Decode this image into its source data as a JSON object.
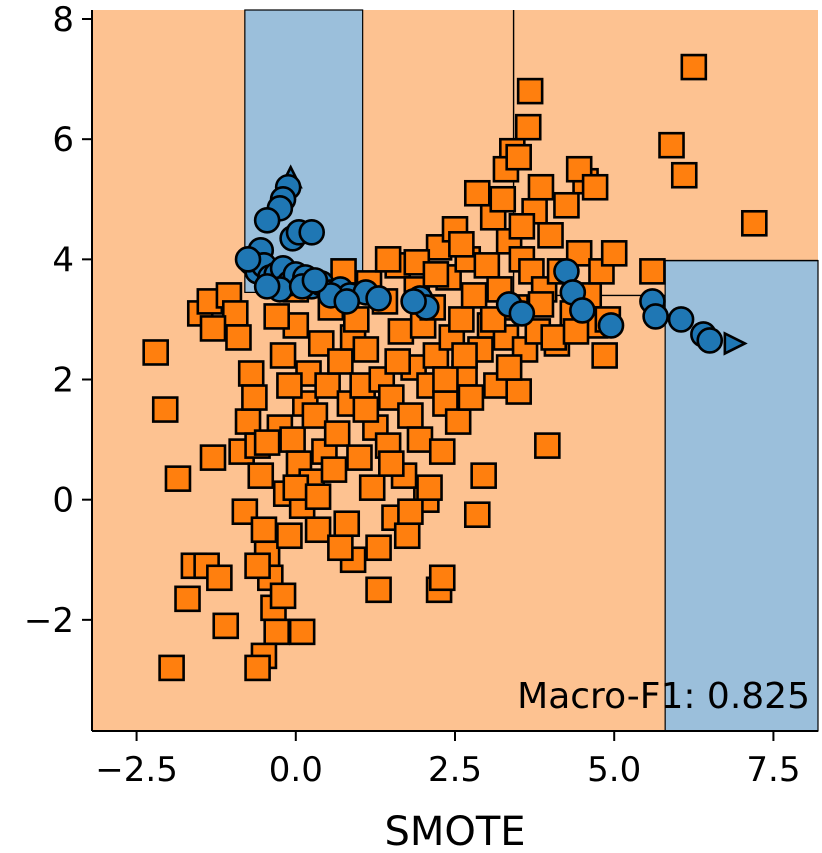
{
  "chart_data": {
    "type": "scatter",
    "title": "",
    "xlabel": "SMOTE",
    "ylabel": "",
    "xlim": [
      -3.2,
      8.2
    ],
    "ylim": [
      -3.85,
      8.15
    ],
    "xticks": [
      -2.5,
      0.0,
      2.5,
      5.0,
      7.5
    ],
    "xtick_labels": [
      "−2.5",
      "0.0",
      "2.5",
      "5.0",
      "7.5"
    ],
    "yticks": [
      -2,
      0,
      2,
      4,
      6,
      8
    ],
    "ytick_labels": [
      "−2",
      "0",
      "2",
      "4",
      "6",
      "8"
    ],
    "annotation": "Macro-F1: 0.825",
    "colors": {
      "majority_marker": "#ff7f0e",
      "minority_marker": "#1f77b4",
      "majority_region": "#fdc291",
      "minority_region": "#9bbfdb",
      "edge": "#000000"
    },
    "decision_regions": [
      {
        "class": "minority",
        "x": [
          -0.8,
          1.05
        ],
        "y": [
          3.45,
          8.15
        ]
      },
      {
        "class": "minority",
        "x": [
          5.8,
          8.2
        ],
        "y": [
          -3.85,
          3.98
        ]
      }
    ],
    "boundary_lines": [
      {
        "x": [
          3.42,
          3.42
        ],
        "y": [
          3.3,
          8.15
        ]
      },
      {
        "x": [
          3.42,
          5.8
        ],
        "y": [
          3.4,
          3.4
        ]
      },
      {
        "x": [
          5.8,
          8.2
        ],
        "y": [
          3.98,
          3.98
        ]
      }
    ],
    "series": [
      {
        "name": "majority",
        "marker": "square",
        "points": [
          [
            -2.2,
            2.45
          ],
          [
            -2.05,
            1.5
          ],
          [
            -1.85,
            0.35
          ],
          [
            -1.95,
            -2.8
          ],
          [
            -1.7,
            -1.65
          ],
          [
            -1.6,
            -1.1
          ],
          [
            -1.4,
            -1.1
          ],
          [
            -1.3,
            0.7
          ],
          [
            -1.2,
            -1.3
          ],
          [
            -1.1,
            -2.1
          ],
          [
            -1.5,
            3.1
          ],
          [
            -1.35,
            3.3
          ],
          [
            -1.05,
            3.4
          ],
          [
            -0.95,
            3.1
          ],
          [
            -0.9,
            2.7
          ],
          [
            -0.85,
            0.8
          ],
          [
            -0.8,
            -0.2
          ],
          [
            -0.75,
            1.3
          ],
          [
            -0.7,
            2.1
          ],
          [
            -0.65,
            1.7
          ],
          [
            -0.6,
            0.9
          ],
          [
            -0.55,
            0.4
          ],
          [
            -0.5,
            -0.5
          ],
          [
            -0.45,
            -0.9
          ],
          [
            -0.4,
            -1.3
          ],
          [
            -0.35,
            -1.8
          ],
          [
            -0.3,
            -2.2
          ],
          [
            -0.25,
            1.2
          ],
          [
            -0.2,
            2.4
          ],
          [
            -0.15,
            0.1
          ],
          [
            -0.1,
            -0.6
          ],
          [
            -0.05,
            1.0
          ],
          [
            0.0,
            2.9
          ],
          [
            0.05,
            0.6
          ],
          [
            0.1,
            -0.1
          ],
          [
            0.15,
            1.6
          ],
          [
            0.2,
            2.1
          ],
          [
            0.25,
            0.3
          ],
          [
            0.3,
            1.4
          ],
          [
            0.35,
            -0.5
          ],
          [
            0.4,
            2.6
          ],
          [
            0.45,
            0.8
          ],
          [
            0.5,
            1.9
          ],
          [
            0.55,
            3.2
          ],
          [
            0.6,
            0.5
          ],
          [
            0.65,
            1.1
          ],
          [
            0.7,
            2.3
          ],
          [
            0.75,
            3.8
          ],
          [
            0.8,
            -0.4
          ],
          [
            0.85,
            1.6
          ],
          [
            0.9,
            2.7
          ],
          [
            0.95,
            3.0
          ],
          [
            1.0,
            0.7
          ],
          [
            1.05,
            1.9
          ],
          [
            1.1,
            2.5
          ],
          [
            1.15,
            3.6
          ],
          [
            1.2,
            0.2
          ],
          [
            1.25,
            1.2
          ],
          [
            1.3,
            -0.8
          ],
          [
            1.35,
            2.0
          ],
          [
            1.4,
            3.3
          ],
          [
            1.45,
            0.9
          ],
          [
            1.5,
            1.7
          ],
          [
            1.55,
            -0.3
          ],
          [
            1.6,
            3.9
          ],
          [
            1.65,
            2.8
          ],
          [
            1.7,
            0.4
          ],
          [
            1.75,
            -0.6
          ],
          [
            1.8,
            1.4
          ],
          [
            1.85,
            2.2
          ],
          [
            1.9,
            3.5
          ],
          [
            1.95,
            1.0
          ],
          [
            2.0,
            2.9
          ],
          [
            2.05,
            0.0
          ],
          [
            2.1,
            1.9
          ],
          [
            2.15,
            3.2
          ],
          [
            2.2,
            2.4
          ],
          [
            2.25,
            4.2
          ],
          [
            2.3,
            0.8
          ],
          [
            2.35,
            1.6
          ],
          [
            2.4,
            3.7
          ],
          [
            2.45,
            2.7
          ],
          [
            2.5,
            4.5
          ],
          [
            2.55,
            1.3
          ],
          [
            2.6,
            3.0
          ],
          [
            2.65,
            2.1
          ],
          [
            2.7,
            4.0
          ],
          [
            2.75,
            1.7
          ],
          [
            2.8,
            3.4
          ],
          [
            2.85,
            5.1
          ],
          [
            2.9,
            2.5
          ],
          [
            2.95,
            0.4
          ],
          [
            3.0,
            3.9
          ],
          [
            3.05,
            2.9
          ],
          [
            3.1,
            4.7
          ],
          [
            3.15,
            1.9
          ],
          [
            3.2,
            3.5
          ],
          [
            3.25,
            5.0
          ],
          [
            3.3,
            2.7
          ],
          [
            3.35,
            4.3
          ],
          [
            3.4,
            5.8
          ],
          [
            3.45,
            3.2
          ],
          [
            3.5,
            1.8
          ],
          [
            3.55,
            4.0
          ],
          [
            3.6,
            2.5
          ],
          [
            3.65,
            6.2
          ],
          [
            3.7,
            3.8
          ],
          [
            3.75,
            4.8
          ],
          [
            3.8,
            2.8
          ],
          [
            3.85,
            5.2
          ],
          [
            3.9,
            3.5
          ],
          [
            3.95,
            0.9
          ],
          [
            4.0,
            4.4
          ],
          [
            4.1,
            2.6
          ],
          [
            4.15,
            3.8
          ],
          [
            4.25,
            4.9
          ],
          [
            4.35,
            3.1
          ],
          [
            4.45,
            4.1
          ],
          [
            4.55,
            5.3
          ],
          [
            4.6,
            3.4
          ],
          [
            4.7,
            2.9
          ],
          [
            4.8,
            3.8
          ],
          [
            4.9,
            3.0
          ],
          [
            5.0,
            4.1
          ],
          [
            4.85,
            2.4
          ],
          [
            3.68,
            6.8
          ],
          [
            4.45,
            5.5
          ],
          [
            4.7,
            5.2
          ],
          [
            5.9,
            5.9
          ],
          [
            6.1,
            5.4
          ],
          [
            6.25,
            7.2
          ],
          [
            7.2,
            4.6
          ],
          [
            5.6,
            3.8
          ],
          [
            3.3,
            5.5
          ],
          [
            3.5,
            5.7
          ],
          [
            -0.6,
            -1.1
          ],
          [
            -0.2,
            -1.6
          ],
          [
            0.1,
            -2.2
          ],
          [
            -0.5,
            -2.6
          ],
          [
            -0.6,
            -2.8
          ],
          [
            1.3,
            -1.5
          ],
          [
            2.25,
            -1.5
          ],
          [
            2.3,
            -1.3
          ],
          [
            2.85,
            -0.25
          ],
          [
            0.9,
            -1.0
          ],
          [
            1.5,
            0.6
          ],
          [
            0.7,
            -0.8
          ],
          [
            1.8,
            -0.2
          ],
          [
            2.1,
            0.2
          ],
          [
            0.0,
            0.2
          ],
          [
            -0.45,
            0.95
          ],
          [
            -0.1,
            1.9
          ],
          [
            0.35,
            0.05
          ],
          [
            1.1,
            1.5
          ],
          [
            1.6,
            2.3
          ],
          [
            2.35,
            2.0
          ],
          [
            2.65,
            2.4
          ],
          [
            3.1,
            3.0
          ],
          [
            3.35,
            2.2
          ],
          [
            3.85,
            3.25
          ],
          [
            -0.3,
            3.05
          ],
          [
            -1.3,
            2.85
          ],
          [
            0.0,
            3.5
          ],
          [
            1.45,
            4.0
          ],
          [
            1.9,
            3.95
          ],
          [
            2.2,
            3.75
          ],
          [
            2.6,
            4.25
          ],
          [
            3.55,
            4.55
          ],
          [
            4.05,
            2.7
          ],
          [
            4.4,
            2.8
          ]
        ]
      },
      {
        "name": "minority",
        "marker": "circle",
        "points": [
          [
            -0.12,
            5.2
          ],
          [
            -0.2,
            5.0
          ],
          [
            -0.25,
            4.85
          ],
          [
            -0.45,
            4.65
          ],
          [
            -0.05,
            4.35
          ],
          [
            0.05,
            4.45
          ],
          [
            0.25,
            4.45
          ],
          [
            -0.55,
            4.15
          ],
          [
            -0.7,
            3.95
          ],
          [
            -0.6,
            3.8
          ],
          [
            -0.5,
            3.9
          ],
          [
            -0.4,
            3.7
          ],
          [
            -0.3,
            3.75
          ],
          [
            -0.2,
            3.85
          ],
          [
            -0.1,
            3.6
          ],
          [
            0.0,
            3.75
          ],
          [
            0.15,
            3.7
          ],
          [
            0.25,
            3.55
          ],
          [
            0.4,
            3.6
          ],
          [
            0.55,
            3.45
          ],
          [
            0.7,
            3.5
          ],
          [
            0.85,
            3.4
          ],
          [
            1.1,
            3.45
          ],
          [
            1.3,
            3.35
          ],
          [
            -0.25,
            3.5
          ],
          [
            0.1,
            3.55
          ],
          [
            -0.75,
            4.0
          ],
          [
            1.95,
            3.35
          ],
          [
            2.05,
            3.2
          ],
          [
            3.35,
            3.25
          ],
          [
            3.55,
            3.1
          ],
          [
            4.25,
            3.8
          ],
          [
            4.35,
            3.45
          ],
          [
            4.5,
            3.15
          ],
          [
            4.95,
            2.9
          ],
          [
            5.6,
            3.3
          ],
          [
            5.65,
            3.05
          ],
          [
            6.05,
            3.0
          ],
          [
            6.4,
            2.75
          ],
          [
            6.5,
            2.65
          ],
          [
            0.55,
            3.4
          ],
          [
            0.8,
            3.3
          ],
          [
            1.85,
            3.3
          ],
          [
            -0.45,
            3.55
          ],
          [
            0.3,
            3.65
          ]
        ],
        "arrows": [
          {
            "x": -0.08,
            "y": 5.3,
            "direction": "up"
          },
          {
            "x": 6.8,
            "y": 2.6,
            "direction": "right"
          }
        ]
      }
    ]
  }
}
